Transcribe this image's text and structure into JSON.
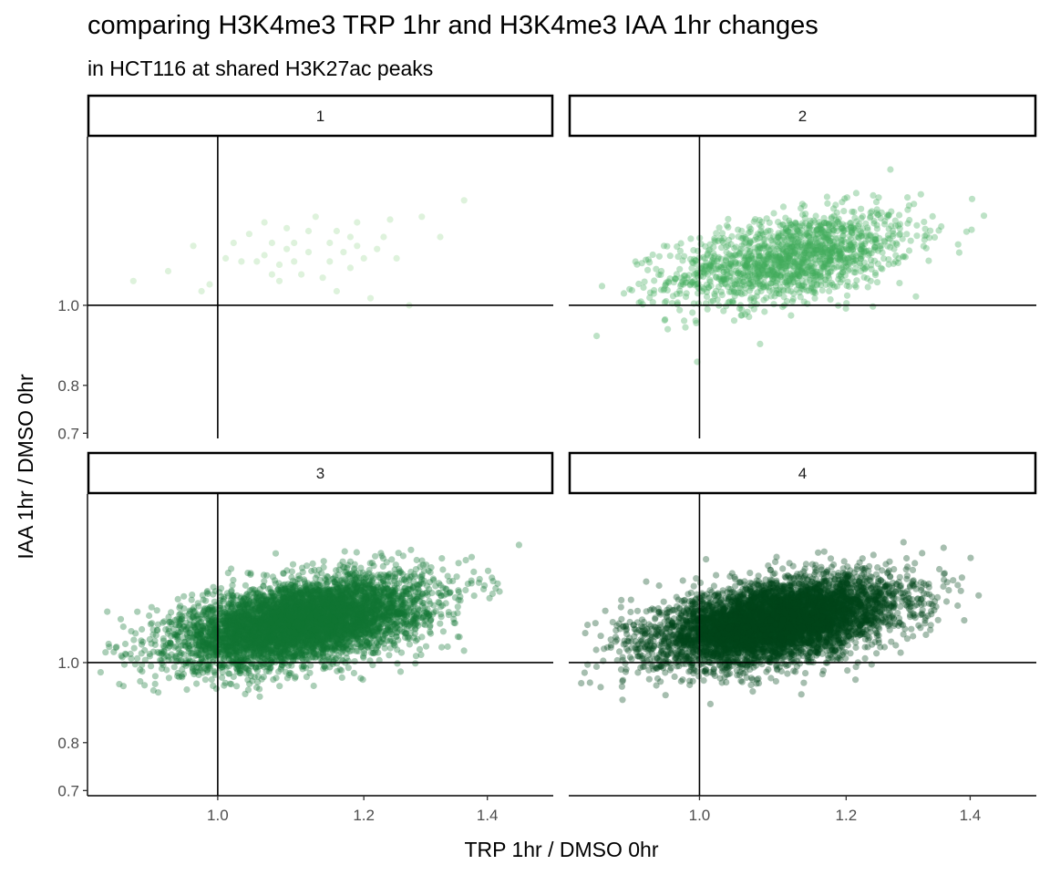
{
  "chart_data": {
    "type": "scatter",
    "title": "comparing H3K4me3 TRP 1hr and H3K4me3 IAA 1hr changes",
    "subtitle": "in HCT116 at shared H3K27ac peaks",
    "xlabel": "TRP 1hr / DMSO 0hr",
    "ylabel": "IAA 1hr / DMSO 0hr",
    "x_scale": "log",
    "y_scale": "log",
    "xlim": [
      0.85,
      1.52
    ],
    "ylim": [
      0.69,
      1.6
    ],
    "x_ticks": [
      "1.0",
      "1.2",
      "1.4"
    ],
    "x_tick_values": [
      1.0,
      1.2,
      1.4
    ],
    "y_ticks": [
      "0.7",
      "0.8",
      "1.0"
    ],
    "y_tick_values": [
      0.7,
      0.8,
      1.0
    ],
    "reference_lines": {
      "x": 1.0,
      "y": 1.0
    },
    "grid": false,
    "legend": "none",
    "colors": {
      "1": "#a1d99b",
      "2": "#41ab5d",
      "3": "#117535",
      "4": "#00441b"
    },
    "facets": [
      {
        "label": "1",
        "approx_points": 80,
        "points": [
          [
            0.9,
            1.07
          ],
          [
            0.94,
            1.1
          ],
          [
            0.97,
            1.18
          ],
          [
            0.98,
            1.04
          ],
          [
            0.99,
            1.06
          ],
          [
            1.01,
            1.14
          ],
          [
            1.02,
            1.19
          ],
          [
            1.03,
            1.13
          ],
          [
            1.04,
            1.22
          ],
          [
            1.05,
            1.13
          ],
          [
            1.06,
            1.15
          ],
          [
            1.06,
            1.26
          ],
          [
            1.07,
            1.09
          ],
          [
            1.07,
            1.19
          ],
          [
            1.08,
            1.07
          ],
          [
            1.08,
            1.12
          ],
          [
            1.09,
            1.24
          ],
          [
            1.09,
            1.17
          ],
          [
            1.1,
            1.13
          ],
          [
            1.1,
            1.19
          ],
          [
            1.11,
            1.09
          ],
          [
            1.12,
            1.16
          ],
          [
            1.12,
            1.23
          ],
          [
            1.13,
            1.28
          ],
          [
            1.14,
            1.08
          ],
          [
            1.15,
            1.19
          ],
          [
            1.15,
            1.13
          ],
          [
            1.16,
            1.23
          ],
          [
            1.16,
            1.04
          ],
          [
            1.17,
            1.16
          ],
          [
            1.18,
            1.21
          ],
          [
            1.18,
            1.11
          ],
          [
            1.19,
            1.18
          ],
          [
            1.19,
            1.26
          ],
          [
            1.2,
            1.14
          ],
          [
            1.21,
            1.02
          ],
          [
            1.22,
            1.17
          ],
          [
            1.23,
            1.21
          ],
          [
            1.24,
            1.27
          ],
          [
            1.25,
            1.14
          ],
          [
            1.27,
            1.0
          ],
          [
            1.29,
            1.28
          ],
          [
            1.32,
            1.21
          ],
          [
            1.36,
            1.34
          ]
        ]
      },
      {
        "label": "2",
        "approx_points": 1500,
        "center": [
          1.12,
          1.14
        ],
        "sd": [
          0.075,
          0.065
        ],
        "rho": 0.45
      },
      {
        "label": "3",
        "approx_points": 6000,
        "center": [
          1.11,
          1.12
        ],
        "sd": [
          0.075,
          0.06
        ],
        "rho": 0.45
      },
      {
        "label": "4",
        "approx_points": 6000,
        "center": [
          1.1,
          1.12
        ],
        "sd": [
          0.075,
          0.06
        ],
        "rho": 0.45
      }
    ]
  }
}
